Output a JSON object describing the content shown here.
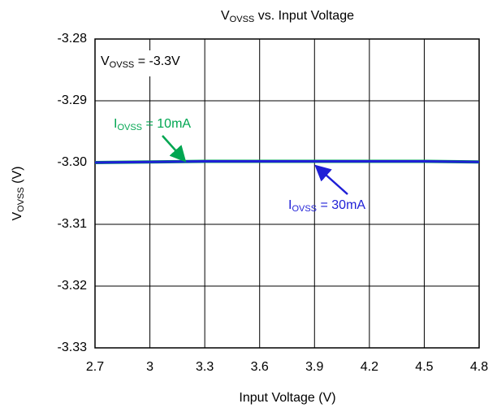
{
  "chart_data": {
    "type": "line",
    "title": [
      "V",
      "OVSS",
      " vs. Input Voltage"
    ],
    "x_label": "Input Voltage (V)",
    "y_label": [
      "V",
      "OVSS",
      " (V)"
    ],
    "x": [
      2.7,
      3,
      3.3,
      3.6,
      3.9,
      4.2,
      4.5,
      4.8
    ],
    "series": [
      {
        "label": [
          "I",
          "OVSS",
          " = 10mA"
        ],
        "color": "#00a651",
        "values": [
          -3.3,
          -3.2999,
          -3.2998,
          -3.2998,
          -3.2998,
          -3.2998,
          -3.2998,
          -3.2999
        ]
      },
      {
        "label": [
          "I",
          "OVSS",
          " = 30mA"
        ],
        "color": "#1f1fd6",
        "values": [
          -3.3,
          -3.2999,
          -3.2998,
          -3.2998,
          -3.2998,
          -3.2998,
          -3.2998,
          -3.2999
        ]
      }
    ],
    "annotation": [
      "V",
      "OVSS",
      " = -3.3V"
    ],
    "xlim": [
      2.7,
      4.8
    ],
    "ylim": [
      -3.33,
      -3.28
    ],
    "xticks": [
      2.7,
      3,
      3.3,
      3.6,
      3.9,
      4.2,
      4.5,
      4.8
    ],
    "yticks": [
      -3.28,
      -3.29,
      {
        "value": -3.3,
        "label": "-3.30"
      },
      -3.31,
      -3.32,
      -3.33
    ],
    "grid": true
  }
}
